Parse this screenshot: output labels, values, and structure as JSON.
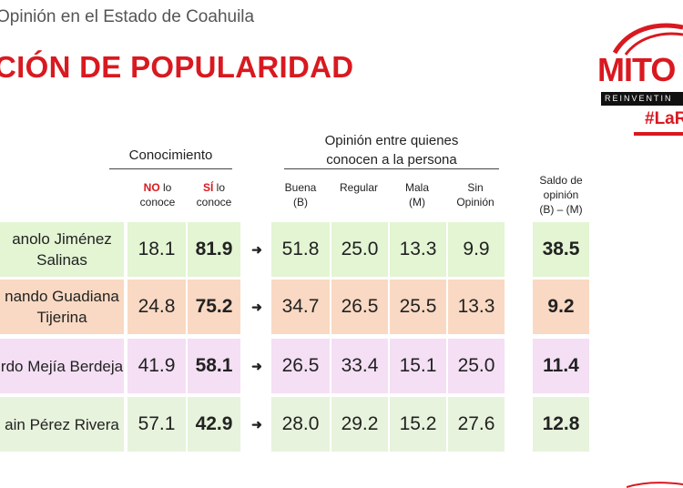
{
  "header": {
    "subtitle": "Opinión en el Estado de Coahuila",
    "title": "CIÓN DE POPULARIDAD"
  },
  "logo": {
    "word": "MITO",
    "tagline": "REINVENTIN",
    "hashtag": "#LaR",
    "colors": {
      "brand_red": "#d91920",
      "bar": "#111111"
    }
  },
  "columns": {
    "group_conocimiento": "Conocimiento",
    "group_opinion_line1": "Opinión entre quienes",
    "group_opinion_line2": "conocen a la persona",
    "no_bold": "NO",
    "no_rest1": " lo",
    "no_rest2": "conoce",
    "si_bold": "SÍ",
    "si_rest1": " lo",
    "si_rest2": "conoce",
    "buena1": "Buena",
    "buena2": "(B)",
    "regular": "Regular",
    "mala1": "Mala",
    "mala2": "(M)",
    "sin1": "Sin",
    "sin2": "Opinión",
    "saldo1": "Saldo de",
    "saldo2": "opinión",
    "saldo3": "(B) – (M)",
    "arrow": "➜"
  },
  "rows": [
    {
      "name1": "anolo Jiménez",
      "name2": "Salinas",
      "no": "18.1",
      "si": "81.9",
      "buena": "51.8",
      "regular": "25.0",
      "mala": "13.3",
      "sin": "9.9",
      "saldo": "38.5",
      "color": "#e3f5d3"
    },
    {
      "name1": "nando Guadiana",
      "name2": "Tijerina",
      "no": "24.8",
      "si": "75.2",
      "buena": "34.7",
      "regular": "26.5",
      "mala": "25.5",
      "sin": "13.3",
      "saldo": "9.2",
      "color": "#f9d9c3"
    },
    {
      "name1": "rdo Mejía Berdeja",
      "name2": "",
      "no": "41.9",
      "si": "58.1",
      "buena": "26.5",
      "regular": "33.4",
      "mala": "15.1",
      "sin": "25.0",
      "saldo": "11.4",
      "color": "#f4dff4"
    },
    {
      "name1": "ain Pérez Rivera",
      "name2": "",
      "no": "57.1",
      "si": "42.9",
      "buena": "28.0",
      "regular": "29.2",
      "mala": "15.2",
      "sin": "27.6",
      "saldo": "12.8",
      "color": "#e7f3dc"
    }
  ]
}
